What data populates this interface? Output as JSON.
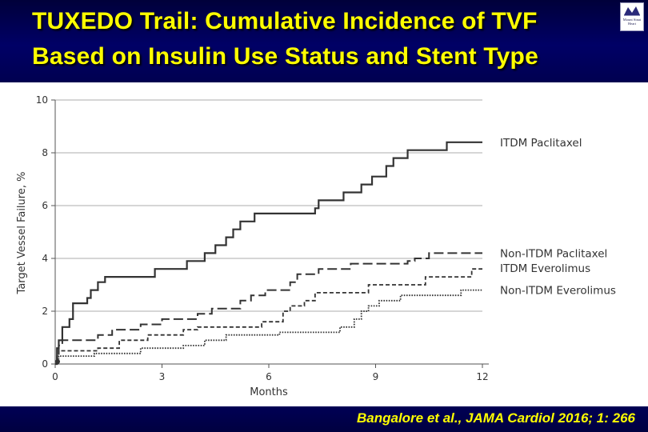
{
  "header": {
    "title_line1": "TUXEDO Trail: Cumulative Incidence of TVF",
    "title_line2": "Based on Insulin Use Status and Stent Type",
    "logo_text": "Mount Sinai Heart",
    "title_color": "#ffff00",
    "band_color": "#000066"
  },
  "footer": {
    "citation": "Bangalore et al., JAMA Cardiol 2016; 1: 266"
  },
  "chart_data": {
    "type": "line",
    "xlabel": "Months",
    "ylabel": "Target Vessel Failure, %",
    "xlim": [
      0,
      12
    ],
    "ylim": [
      0,
      10
    ],
    "xticks": [
      0,
      3,
      6,
      9,
      12
    ],
    "yticks": [
      0,
      2,
      4,
      6,
      8,
      10
    ],
    "grid": "horizontal",
    "legend": "right-end labels",
    "series": [
      {
        "name": "ITDM Paclitaxel",
        "style": "solid",
        "points": [
          [
            0,
            0
          ],
          [
            0.05,
            0.6
          ],
          [
            0.1,
            0.9
          ],
          [
            0.2,
            1.4
          ],
          [
            0.4,
            1.7
          ],
          [
            0.5,
            2.3
          ],
          [
            0.9,
            2.5
          ],
          [
            1.0,
            2.8
          ],
          [
            1.2,
            3.1
          ],
          [
            1.4,
            3.3
          ],
          [
            2.8,
            3.6
          ],
          [
            3.7,
            3.9
          ],
          [
            4.2,
            4.2
          ],
          [
            4.5,
            4.5
          ],
          [
            4.8,
            4.8
          ],
          [
            5.0,
            5.1
          ],
          [
            5.2,
            5.4
          ],
          [
            5.6,
            5.7
          ],
          [
            7.3,
            5.9
          ],
          [
            7.4,
            6.2
          ],
          [
            8.1,
            6.5
          ],
          [
            8.6,
            6.8
          ],
          [
            8.9,
            7.1
          ],
          [
            9.3,
            7.5
          ],
          [
            9.5,
            7.8
          ],
          [
            9.9,
            8.1
          ],
          [
            11.0,
            8.4
          ],
          [
            12.0,
            8.4
          ]
        ]
      },
      {
        "name": "Non-ITDM Paclitaxel",
        "style": "long-dash",
        "points": [
          [
            0,
            0
          ],
          [
            0.05,
            0.4
          ],
          [
            0.1,
            0.7
          ],
          [
            0.2,
            0.9
          ],
          [
            1.2,
            1.1
          ],
          [
            1.6,
            1.3
          ],
          [
            2.4,
            1.5
          ],
          [
            3.0,
            1.7
          ],
          [
            4.0,
            1.9
          ],
          [
            4.4,
            2.1
          ],
          [
            5.2,
            2.4
          ],
          [
            5.5,
            2.6
          ],
          [
            5.9,
            2.8
          ],
          [
            6.6,
            3.1
          ],
          [
            6.8,
            3.4
          ],
          [
            7.4,
            3.6
          ],
          [
            8.3,
            3.8
          ],
          [
            9.9,
            3.9
          ],
          [
            10.1,
            4.0
          ],
          [
            10.5,
            4.2
          ],
          [
            12.0,
            4.2
          ]
        ]
      },
      {
        "name": "ITDM Everolimus",
        "style": "short-dash",
        "points": [
          [
            0,
            0
          ],
          [
            0.05,
            0.3
          ],
          [
            0.1,
            0.5
          ],
          [
            1.2,
            0.6
          ],
          [
            1.8,
            0.9
          ],
          [
            2.6,
            1.1
          ],
          [
            3.6,
            1.3
          ],
          [
            4.0,
            1.4
          ],
          [
            5.8,
            1.6
          ],
          [
            6.4,
            2.0
          ],
          [
            6.6,
            2.2
          ],
          [
            7.0,
            2.4
          ],
          [
            7.3,
            2.7
          ],
          [
            8.8,
            3.0
          ],
          [
            10.4,
            3.3
          ],
          [
            11.7,
            3.6
          ],
          [
            12.0,
            3.6
          ]
        ]
      },
      {
        "name": "Non-ITDM Everolimus",
        "style": "dotted",
        "points": [
          [
            0,
            0
          ],
          [
            0.05,
            0.2
          ],
          [
            0.1,
            0.3
          ],
          [
            1.1,
            0.4
          ],
          [
            2.4,
            0.6
          ],
          [
            3.6,
            0.7
          ],
          [
            4.2,
            0.9
          ],
          [
            4.8,
            1.1
          ],
          [
            6.3,
            1.2
          ],
          [
            8.0,
            1.4
          ],
          [
            8.4,
            1.7
          ],
          [
            8.6,
            2.0
          ],
          [
            8.8,
            2.2
          ],
          [
            9.1,
            2.4
          ],
          [
            9.7,
            2.6
          ],
          [
            11.4,
            2.8
          ],
          [
            12.0,
            2.8
          ]
        ]
      }
    ]
  }
}
